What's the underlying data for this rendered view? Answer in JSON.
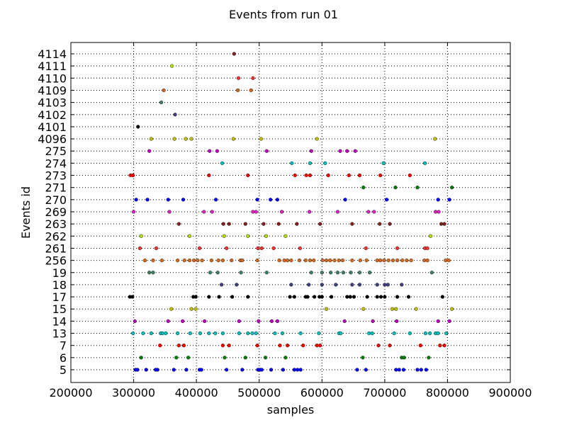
{
  "chart_data": {
    "type": "scatter",
    "title": "Events from run 01",
    "xlabel": "samples",
    "ylabel": "Events id",
    "xlim": [
      200000,
      900000
    ],
    "xticks": [
      200000,
      300000,
      400000,
      500000,
      600000,
      700000,
      800000,
      900000
    ],
    "xtick_labels": [
      "200000",
      "300000",
      "400000",
      "500000",
      "600000",
      "700000",
      "800000",
      "900000"
    ],
    "categories": [
      "5",
      "6",
      "7",
      "13",
      "14",
      "15",
      "17",
      "18",
      "19",
      "256",
      "261",
      "262",
      "263",
      "269",
      "270",
      "271",
      "273",
      "274",
      "275",
      "4096",
      "4101",
      "4102",
      "4103",
      "4109",
      "4110",
      "4111",
      "4114"
    ],
    "grid": true,
    "series": [
      {
        "category": "5",
        "color": "#0000ff",
        "x": [
          303000,
          306000,
          320000,
          335000,
          338000,
          364000,
          384000,
          405000,
          408000,
          448000,
          473000,
          498000,
          501000,
          504000,
          519000,
          538000,
          556000,
          561000,
          566000,
          656000,
          670000,
          718000,
          723000,
          730000,
          752000,
          758000,
          766000
        ]
      },
      {
        "category": "6",
        "color": "#008000",
        "x": [
          312000,
          368000,
          387000,
          445000,
          478000,
          510000,
          542000,
          665000,
          727000,
          731000,
          770000
        ]
      },
      {
        "category": "7",
        "color": "#ff0000",
        "x": [
          342000,
          372000,
          380000,
          442000,
          452000,
          497000,
          533000,
          545000,
          570000,
          592000,
          597000,
          690000,
          708000,
          757000,
          788000,
          795000
        ]
      },
      {
        "category": "13",
        "color": "#00bfbf",
        "x": [
          299000,
          315000,
          328000,
          343000,
          346000,
          351000,
          370000,
          390000,
          406000,
          420000,
          430000,
          442000,
          468000,
          482000,
          489000,
          495000,
          525000,
          537000,
          566000,
          595000,
          627000,
          630000,
          675000,
          680000,
          715000,
          740000,
          765000,
          772000,
          781000,
          785000,
          798000
        ]
      },
      {
        "category": "14",
        "color": "#bf00bf",
        "x": [
          302000,
          355000,
          378000,
          413000,
          468000,
          499000,
          520000,
          529000,
          636000,
          681000,
          719000,
          785000,
          803000
        ]
      },
      {
        "category": "15",
        "color": "#bfbf00",
        "x": [
          360000,
          392000,
          399000,
          607000,
          666000,
          712000,
          718000,
          750000,
          807000
        ]
      },
      {
        "category": "17",
        "color": "#000000",
        "x": [
          294000,
          298000,
          395000,
          399000,
          420000,
          436000,
          457000,
          482000,
          549000,
          556000,
          574000,
          577000,
          588000,
          596000,
          600000,
          615000,
          640000,
          645000,
          651000,
          672000,
          688000,
          694000,
          700000,
          720000,
          738000,
          792000
        ]
      },
      {
        "category": "18",
        "color": "#404080",
        "x": [
          440000,
          464000,
          551000,
          579000,
          600000,
          622000,
          648000,
          660000,
          688000,
          700000,
          705000,
          727000
        ]
      },
      {
        "category": "19",
        "color": "#408060",
        "x": [
          325000,
          331000,
          422000,
          434000,
          471000,
          512000,
          583000,
          600000,
          614000,
          625000,
          634000,
          646000,
          660000,
          676000,
          775000
        ]
      },
      {
        "category": "256",
        "color": "#d2691e",
        "x": [
          318000,
          331000,
          345000,
          370000,
          381000,
          389000,
          396000,
          402000,
          409000,
          424000,
          435000,
          442000,
          456000,
          470000,
          473000,
          497000,
          532000,
          540000,
          545000,
          551000,
          564000,
          574000,
          581000,
          587000,
          601000,
          607000,
          613000,
          620000,
          627000,
          633000,
          648000,
          661000,
          671000,
          688000,
          693000,
          699000,
          706000,
          713000,
          720000,
          728000,
          735000,
          742000,
          763000,
          768000,
          797000,
          802000
        ]
      },
      {
        "category": "261",
        "color": "#ff3030",
        "x": [
          310000,
          336000,
          405000,
          448000,
          498000,
          504000,
          523000,
          565000,
          670000,
          720000,
          764000,
          768000
        ]
      },
      {
        "category": "262",
        "color": "#b0e000",
        "x": [
          312000,
          389000,
          444000,
          482000,
          511000,
          542000,
          773000
        ]
      },
      {
        "category": "263",
        "color": "#802020",
        "x": [
          372000,
          443000,
          452000,
          478000,
          507000,
          531000,
          560000,
          597000,
          648000,
          692000,
          708000,
          790000,
          795000
        ]
      },
      {
        "category": "269",
        "color": "#e020c0",
        "x": [
          300000,
          357000,
          412000,
          425000,
          490000,
          495000,
          536000,
          580000,
          625000,
          674000,
          683000,
          781000,
          786000
        ]
      },
      {
        "category": "270",
        "color": "#0000ff",
        "x": [
          304000,
          322000,
          355000,
          379000,
          431000,
          497000,
          518000,
          529000,
          637000,
          703000,
          785000,
          803000
        ]
      },
      {
        "category": "271",
        "color": "#008000",
        "x": [
          666000,
          717000,
          752000,
          807000
        ]
      },
      {
        "category": "273",
        "color": "#ff0000",
        "x": [
          295000,
          299000,
          420000,
          482000,
          557000,
          575000,
          581000,
          610000,
          643000,
          660000,
          693000,
          740000
        ]
      },
      {
        "category": "274",
        "color": "#00bfbf",
        "x": [
          441000,
          552000,
          581000,
          605000,
          698000,
          764000
        ]
      },
      {
        "category": "275",
        "color": "#bf00bf",
        "x": [
          325000,
          421000,
          433000,
          512000,
          583000,
          629000,
          640000,
          653000
        ]
      },
      {
        "category": "4096",
        "color": "#bfbf00",
        "x": [
          328000,
          365000,
          383000,
          392000,
          459000,
          503000,
          592000,
          780000
        ]
      },
      {
        "category": "4101",
        "color": "#000000",
        "x": [
          307000
        ]
      },
      {
        "category": "4102",
        "color": "#404080",
        "x": [
          366000
        ]
      },
      {
        "category": "4103",
        "color": "#408060",
        "x": [
          344000
        ]
      },
      {
        "category": "4109",
        "color": "#d2691e",
        "x": [
          348000,
          466000,
          487000
        ]
      },
      {
        "category": "4110",
        "color": "#ff3030",
        "x": [
          467000,
          490000
        ]
      },
      {
        "category": "4111",
        "color": "#b0e000",
        "x": [
          361000
        ]
      },
      {
        "category": "4114",
        "color": "#802020",
        "x": [
          460000
        ]
      }
    ]
  }
}
